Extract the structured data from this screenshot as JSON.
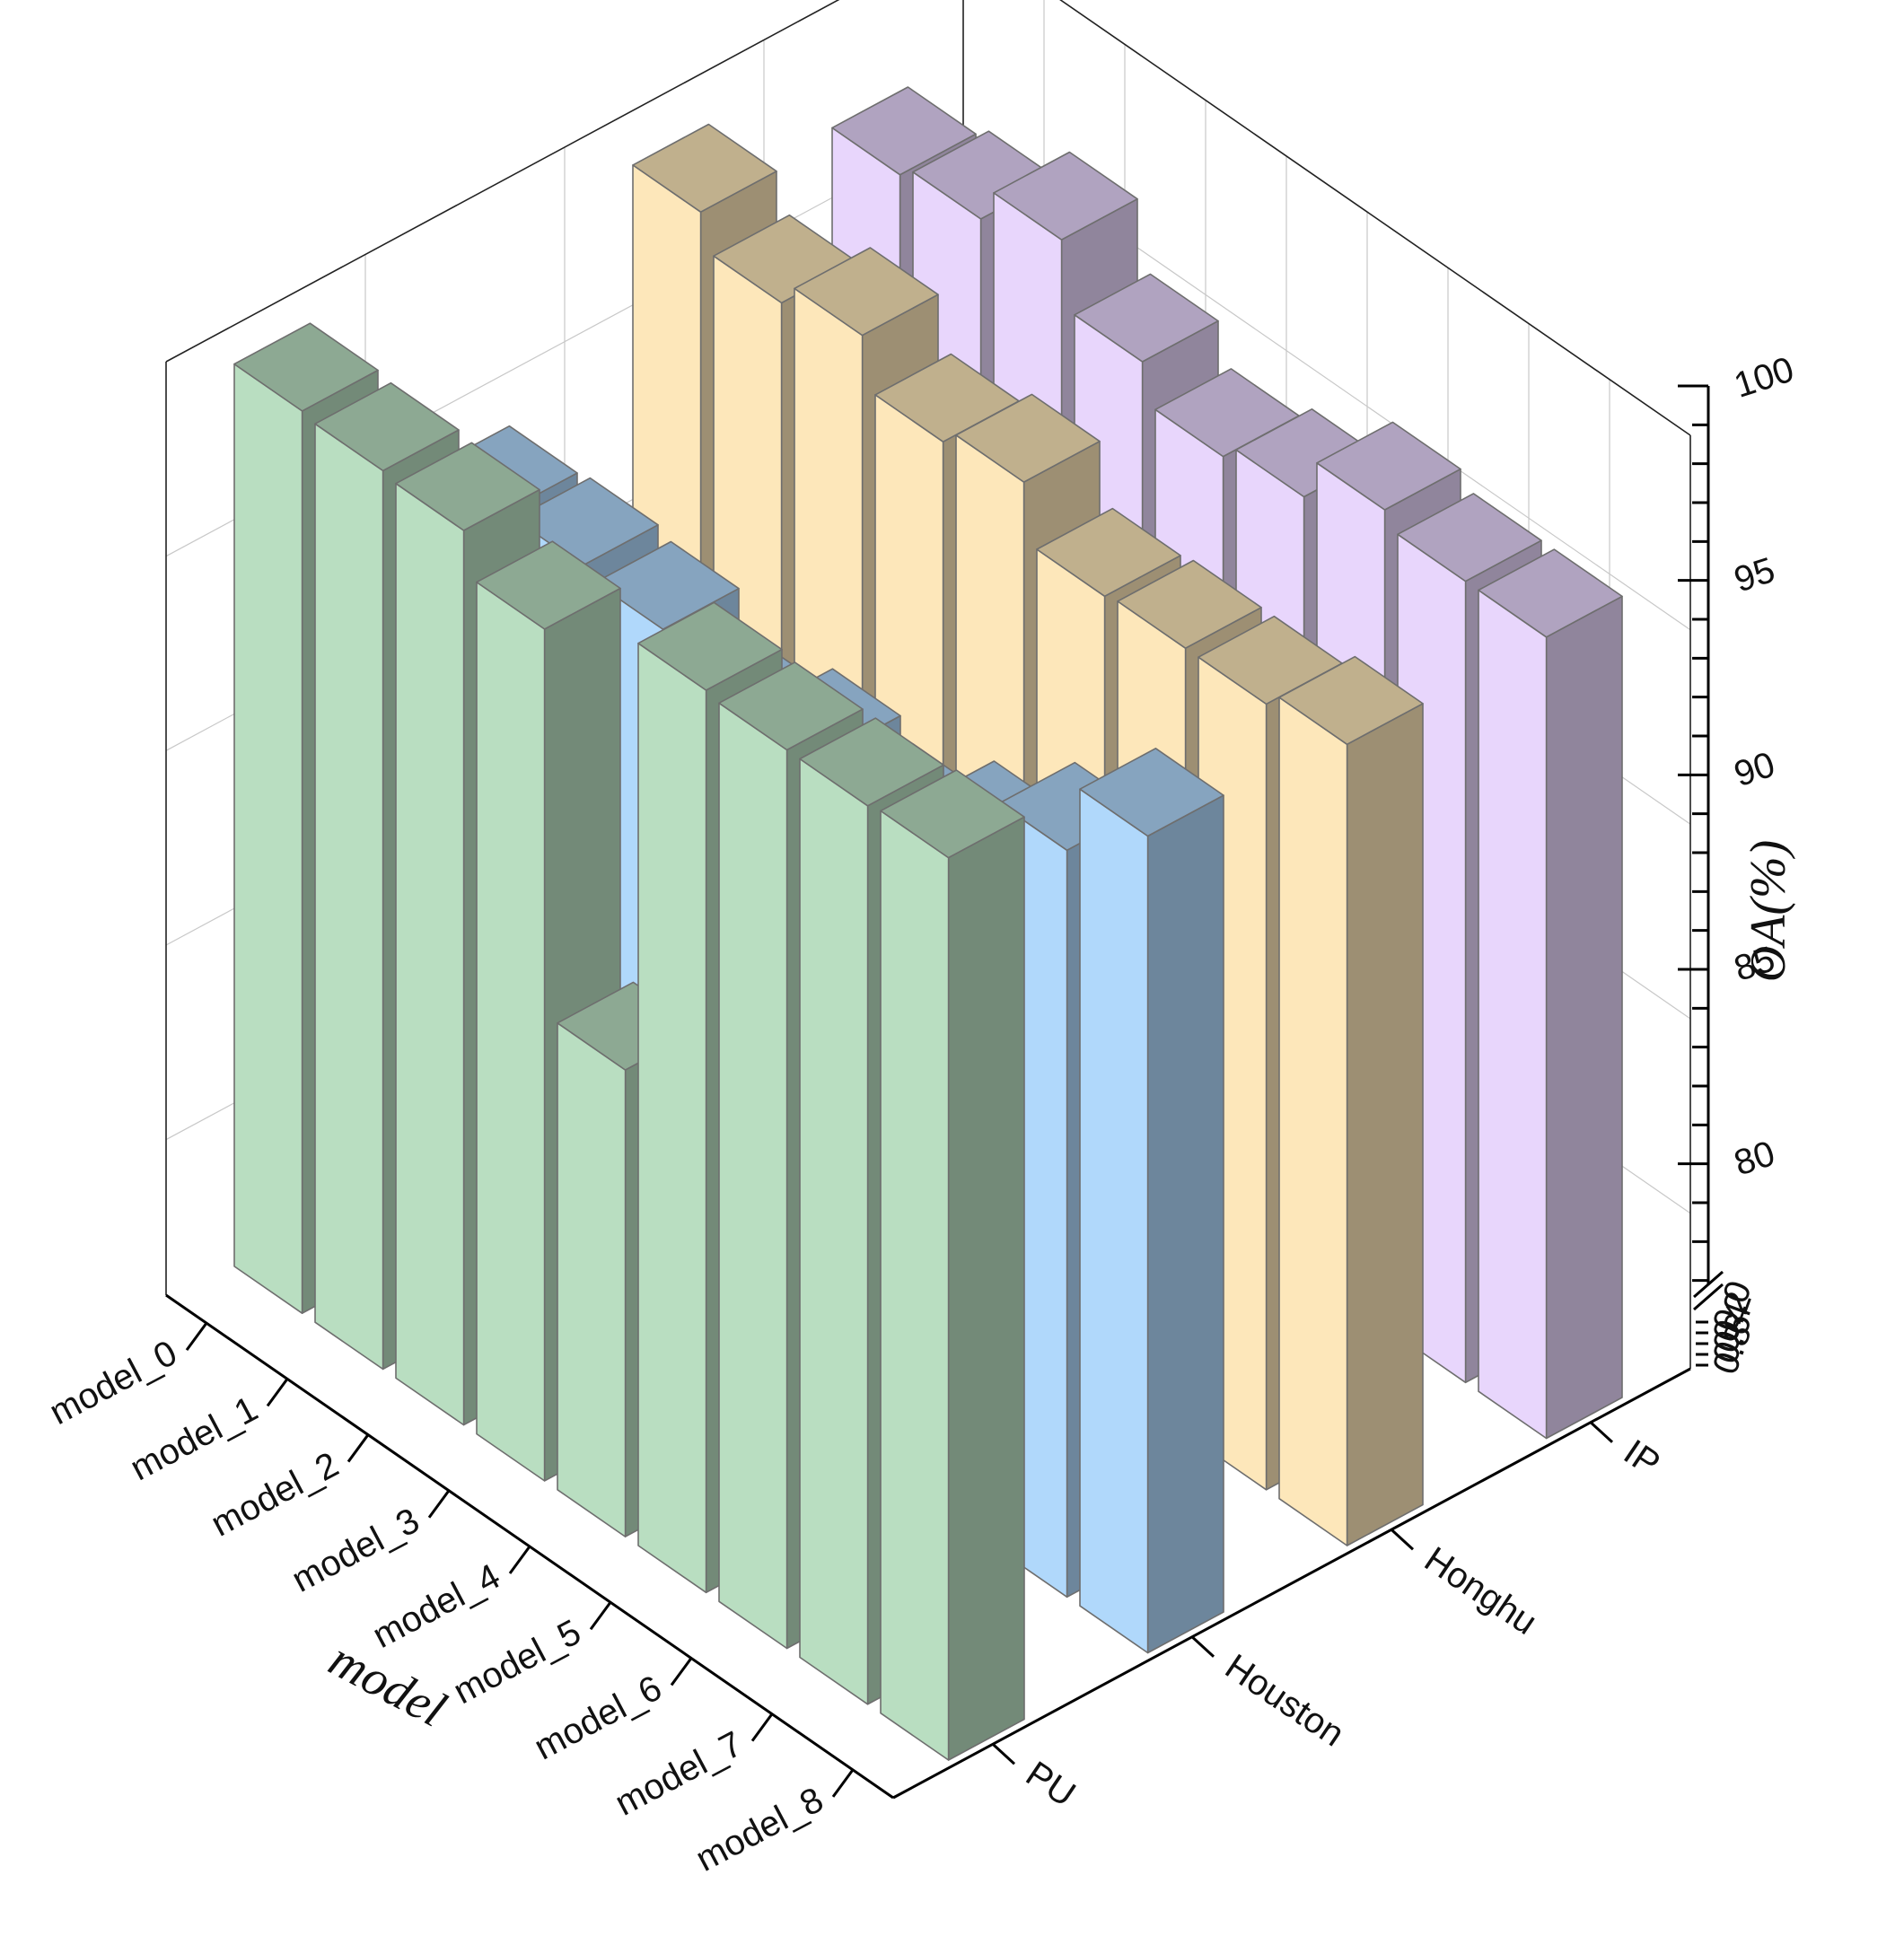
{
  "chart_data": {
    "type": "bar3d",
    "xlabel": "model",
    "ylabel": "",
    "zlabel": "OA(%)",
    "x_categories": [
      "model_0",
      "model_1",
      "model_2",
      "model_3",
      "model_4",
      "model_5",
      "model_6",
      "model_7",
      "model_8"
    ],
    "y_categories": [
      "PU",
      "Houston",
      "Honghu",
      "IP"
    ],
    "zlim": [
      76,
      100
    ],
    "z_ticks": [
      "80",
      "85",
      "90",
      "95",
      "100"
    ],
    "z_break_labels": [
      "0.0",
      "0.2",
      "0.4",
      "0.6",
      "0.8"
    ],
    "grid": true,
    "series": [
      {
        "name": "PU",
        "color": "#b9dec1",
        "values": [
          99.2,
          99.1,
          99.0,
          97.9,
          88.0,
          99.2,
          99.1,
          99.1,
          99.2
        ]
      },
      {
        "name": "Houston",
        "color": "#b0d8fb",
        "values": [
          93.8,
          93.9,
          93.7,
          92.7,
          93.3,
          92.8,
          93.8,
          95.2,
          97.0
        ]
      },
      {
        "name": "Honghu",
        "color": "#fde7ba",
        "values": [
          98.8,
          97.9,
          98.5,
          97.2,
          97.6,
          96.1,
          96.2,
          96.2,
          96.6
        ]
      },
      {
        "name": "IP",
        "color": "#e8d6fc",
        "values": [
          97.0,
          97.3,
          98.2,
          96.5,
          95.5,
          95.9,
          97.0,
          96.6,
          96.6
        ]
      }
    ]
  }
}
